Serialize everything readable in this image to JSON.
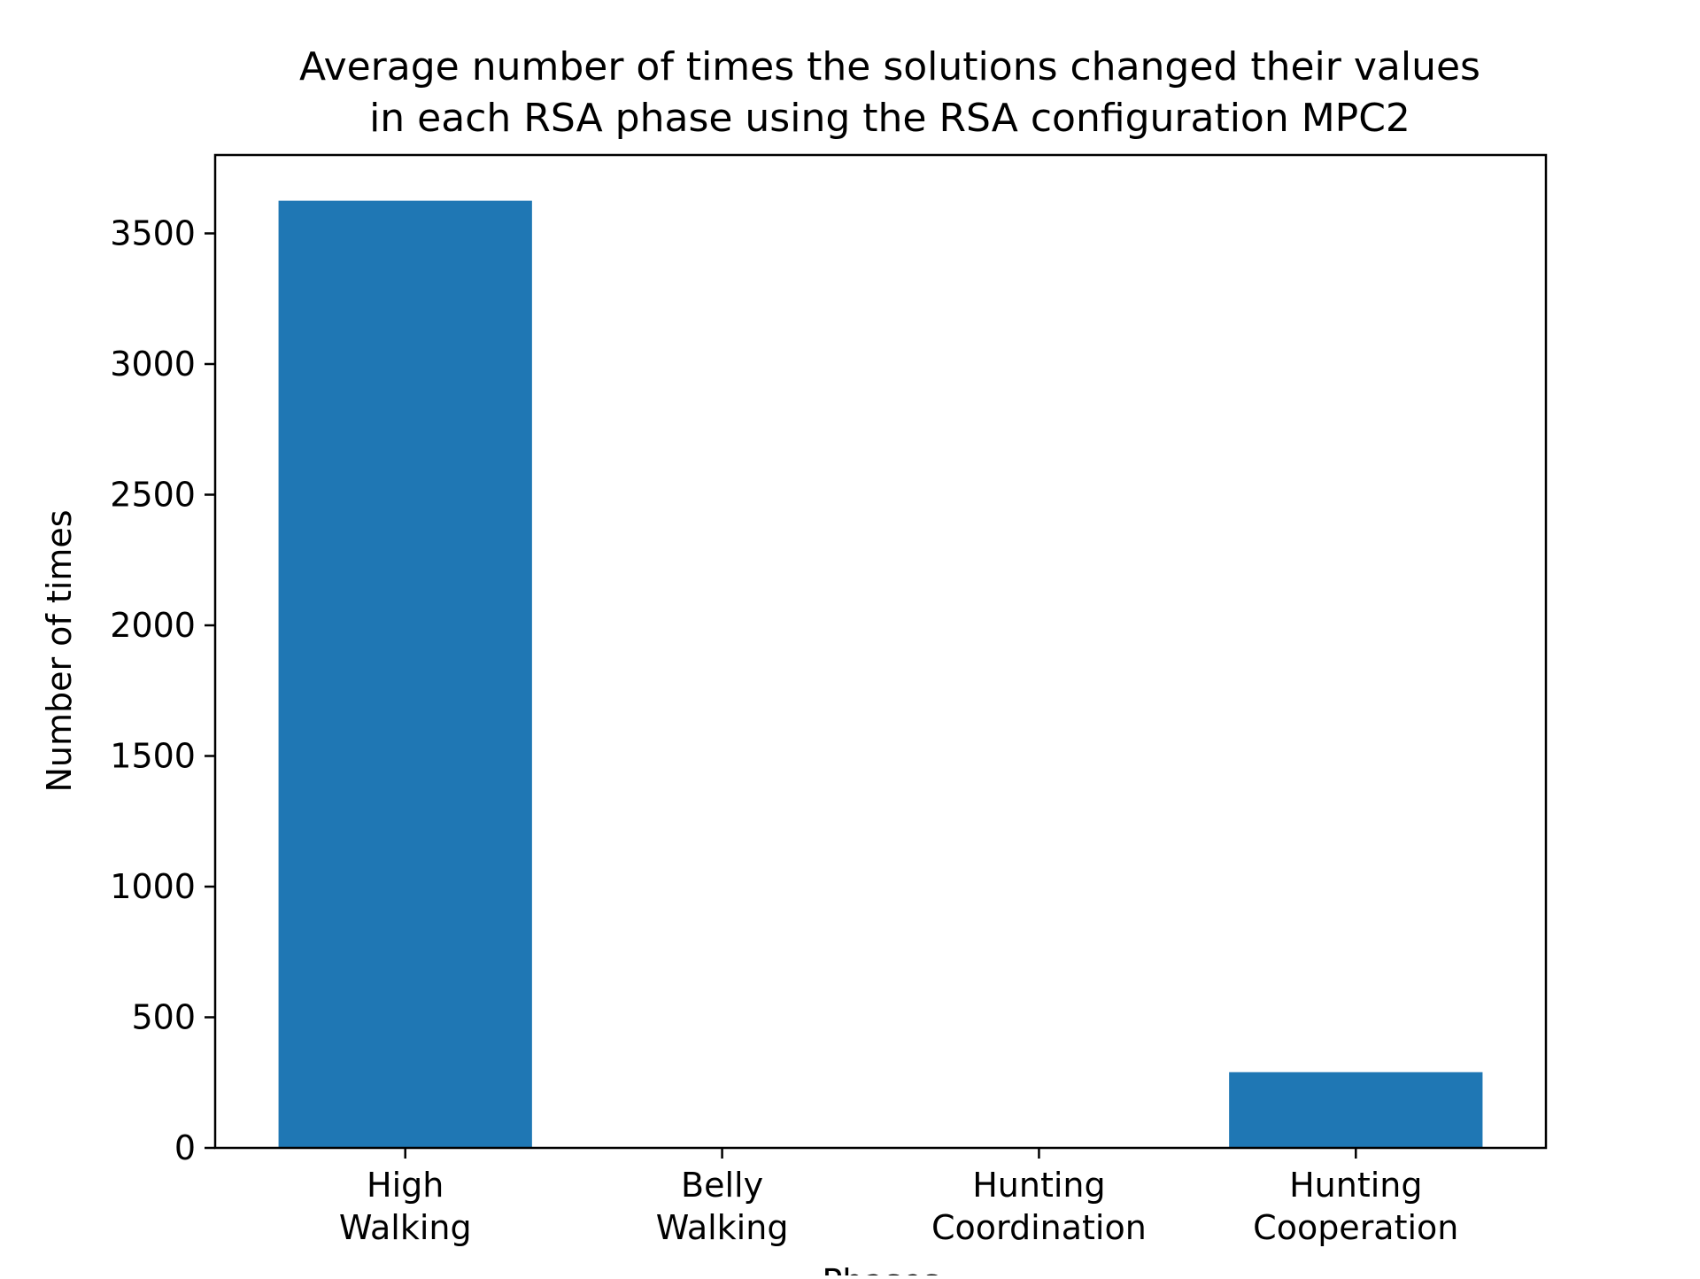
{
  "chart_data": {
    "type": "bar",
    "title_lines": [
      "Average number of times the solutions changed their values",
      "in each RSA phase using the RSA configuration MPC2"
    ],
    "xlabel": "Phases",
    "ylabel": "Number of times",
    "categories": [
      [
        "High",
        "Walking"
      ],
      [
        "Belly",
        "Walking"
      ],
      [
        "Hunting",
        "Coordination"
      ],
      [
        "Hunting",
        "Cooperation"
      ]
    ],
    "values": [
      3625,
      0,
      0,
      290
    ],
    "ylim": [
      0,
      3800
    ],
    "yticks": [
      0,
      500,
      1000,
      1500,
      2000,
      2500,
      3000,
      3500
    ],
    "bar_color": "#1f77b4",
    "grid": false,
    "legend": "none"
  }
}
